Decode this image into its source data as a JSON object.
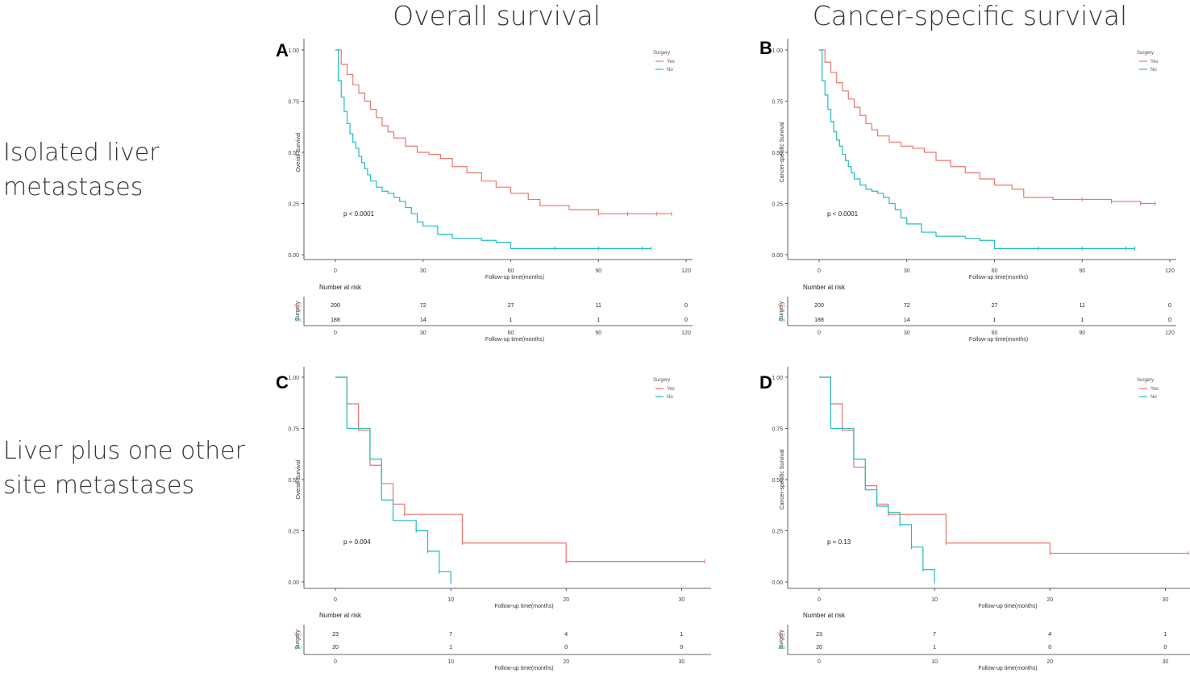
{
  "column_titles": [
    "Overall survival",
    "Cancer-specific survival"
  ],
  "row_labels": [
    [
      "Isolated liver",
      "metastases"
    ],
    [
      "Liver plus one other",
      "site metastases"
    ]
  ],
  "colors": {
    "yes": "#E8776C",
    "no": "#1FBDC4",
    "no_dark": "#168F8F",
    "axis": "#333333"
  },
  "chart_data": [
    {
      "panel": "A",
      "type": "line",
      "ylabel": "Overall Survival",
      "xlabel": "Follow-up time(months)",
      "xlim": [
        0,
        120
      ],
      "ylim": [
        0,
        1
      ],
      "xticks": [
        "0",
        "30",
        "60",
        "90",
        "120"
      ],
      "yticks": [
        "0.00",
        "0.25",
        "0.50",
        "0.75",
        "1.00"
      ],
      "pvalue": "p < 0.0001",
      "legend": {
        "title": "Surgery",
        "entries": [
          "Yes",
          "No"
        ],
        "position": "top-right"
      },
      "series": [
        {
          "name": "Yes",
          "x": [
            0,
            2,
            4,
            6,
            8,
            10,
            12,
            14,
            16,
            18,
            20,
            24,
            28,
            32,
            36,
            40,
            45,
            50,
            55,
            60,
            66,
            70,
            80,
            90,
            100,
            110,
            115
          ],
          "y": [
            1.0,
            0.93,
            0.88,
            0.83,
            0.79,
            0.75,
            0.71,
            0.67,
            0.63,
            0.6,
            0.57,
            0.53,
            0.5,
            0.49,
            0.47,
            0.43,
            0.4,
            0.36,
            0.33,
            0.3,
            0.27,
            0.24,
            0.22,
            0.2,
            0.2,
            0.2,
            0.2
          ]
        },
        {
          "name": "No",
          "x": [
            0,
            1,
            2,
            3,
            4,
            5,
            6,
            7,
            8,
            9,
            10,
            11,
            12,
            14,
            16,
            18,
            20,
            22,
            24,
            26,
            28,
            30,
            35,
            40,
            50,
            55,
            60,
            75,
            90,
            105,
            108
          ],
          "y": [
            1.0,
            0.85,
            0.77,
            0.7,
            0.64,
            0.59,
            0.55,
            0.52,
            0.48,
            0.45,
            0.42,
            0.39,
            0.36,
            0.33,
            0.31,
            0.3,
            0.28,
            0.26,
            0.23,
            0.2,
            0.16,
            0.14,
            0.1,
            0.08,
            0.07,
            0.06,
            0.03,
            0.03,
            0.03,
            0.03,
            0.03
          ]
        }
      ],
      "risk_table": {
        "title": "Number at risk",
        "strata_label": "Surgery",
        "xlabel": "Follow-up time(months)",
        "xticks": [
          "0",
          "30",
          "60",
          "90",
          "120"
        ],
        "rows": [
          {
            "name": "Yes",
            "values": [
              "200",
              "72",
              "27",
              "11",
              "0"
            ]
          },
          {
            "name": "No",
            "values": [
              "188",
              "14",
              "1",
              "1",
              "0"
            ]
          }
        ]
      }
    },
    {
      "panel": "B",
      "type": "line",
      "ylabel": "Cancer-specific Survival",
      "xlabel": "Follow-up time(months)",
      "xlim": [
        0,
        120
      ],
      "ylim": [
        0,
        1
      ],
      "xticks": [
        "0",
        "30",
        "60",
        "90",
        "120"
      ],
      "yticks": [
        "0.00",
        "0.25",
        "0.50",
        "0.75",
        "1.00"
      ],
      "pvalue": "p < 0.0001",
      "legend": {
        "title": "Surgery",
        "entries": [
          "Yes",
          "No"
        ],
        "position": "top-right"
      },
      "series": [
        {
          "name": "Yes",
          "x": [
            0,
            2,
            4,
            6,
            8,
            10,
            12,
            14,
            16,
            18,
            20,
            24,
            28,
            32,
            36,
            40,
            45,
            50,
            55,
            60,
            66,
            70,
            80,
            90,
            100,
            110,
            115
          ],
          "y": [
            1.0,
            0.94,
            0.89,
            0.84,
            0.8,
            0.76,
            0.72,
            0.68,
            0.64,
            0.61,
            0.58,
            0.55,
            0.53,
            0.52,
            0.5,
            0.46,
            0.43,
            0.4,
            0.37,
            0.34,
            0.32,
            0.28,
            0.27,
            0.27,
            0.26,
            0.25,
            0.25
          ]
        },
        {
          "name": "No",
          "x": [
            0,
            1,
            2,
            3,
            4,
            5,
            6,
            7,
            8,
            9,
            10,
            11,
            12,
            14,
            16,
            18,
            20,
            22,
            24,
            26,
            28,
            30,
            35,
            40,
            50,
            55,
            60,
            75,
            90,
            105,
            108
          ],
          "y": [
            1.0,
            0.85,
            0.78,
            0.71,
            0.65,
            0.6,
            0.56,
            0.53,
            0.49,
            0.46,
            0.43,
            0.4,
            0.37,
            0.34,
            0.32,
            0.31,
            0.3,
            0.28,
            0.25,
            0.22,
            0.18,
            0.15,
            0.11,
            0.09,
            0.08,
            0.07,
            0.03,
            0.03,
            0.03,
            0.03,
            0.03
          ]
        }
      ],
      "risk_table": {
        "title": "Number at risk",
        "strata_label": "Surgery",
        "xlabel": "Follow-up time(months)",
        "xticks": [
          "0",
          "30",
          "60",
          "90",
          "120"
        ],
        "rows": [
          {
            "name": "Yes",
            "values": [
              "200",
              "72",
              "27",
              "11",
              "0"
            ]
          },
          {
            "name": "No",
            "values": [
              "188",
              "14",
              "1",
              "1",
              "0"
            ]
          }
        ]
      }
    },
    {
      "panel": "C",
      "type": "line",
      "ylabel": "Overall Survival",
      "xlabel": "Follow-up time(months)",
      "xlim": [
        0,
        32
      ],
      "ylim": [
        0,
        1
      ],
      "xticks": [
        "0",
        "10",
        "20",
        "30"
      ],
      "yticks": [
        "0.00",
        "0.25",
        "0.50",
        "0.75",
        "1.00"
      ],
      "pvalue": "p = 0.094",
      "legend": {
        "title": "Surgery",
        "entries": [
          "Yes",
          "No"
        ],
        "position": "top-right"
      },
      "series": [
        {
          "name": "Yes",
          "x": [
            0,
            1,
            2,
            3,
            4,
            5,
            6,
            11,
            20,
            32
          ],
          "y": [
            1.0,
            0.87,
            0.74,
            0.57,
            0.48,
            0.38,
            0.33,
            0.19,
            0.1,
            0.1
          ]
        },
        {
          "name": "No",
          "x": [
            0,
            1,
            2,
            3,
            4,
            5,
            7,
            8,
            9,
            10
          ],
          "y": [
            1.0,
            0.75,
            0.75,
            0.6,
            0.4,
            0.3,
            0.25,
            0.15,
            0.05,
            0.0
          ]
        }
      ],
      "risk_table": {
        "title": "Number at risk",
        "strata_label": "Surgery",
        "xlabel": "Follow-up time(months)",
        "xticks": [
          "0",
          "10",
          "20",
          "30"
        ],
        "rows": [
          {
            "name": "Yes",
            "values": [
              "23",
              "7",
              "4",
              "1"
            ]
          },
          {
            "name": "No",
            "values": [
              "20",
              "1",
              "0",
              "0"
            ]
          }
        ]
      }
    },
    {
      "panel": "D",
      "type": "line",
      "ylabel": "Cancer-specific Survival",
      "xlabel": "Follow-up time(months)",
      "xlim": [
        0,
        32
      ],
      "ylim": [
        0,
        1
      ],
      "xticks": [
        "0",
        "10",
        "20",
        "30"
      ],
      "yticks": [
        "0.00",
        "0.25",
        "0.50",
        "0.75",
        "1.00"
      ],
      "pvalue": "p = 0.13",
      "legend": {
        "title": "Surgery",
        "entries": [
          "Yes",
          "No"
        ],
        "position": "top-right"
      },
      "series": [
        {
          "name": "Yes",
          "x": [
            0,
            1,
            2,
            3,
            4,
            5,
            6,
            11,
            20,
            32
          ],
          "y": [
            1.0,
            0.87,
            0.74,
            0.56,
            0.47,
            0.38,
            0.33,
            0.19,
            0.14,
            0.14
          ]
        },
        {
          "name": "No",
          "x": [
            0,
            1,
            2,
            3,
            4,
            5,
            6,
            7,
            8,
            9,
            10
          ],
          "y": [
            1.0,
            0.75,
            0.75,
            0.6,
            0.45,
            0.37,
            0.34,
            0.28,
            0.17,
            0.06,
            0.0
          ]
        }
      ],
      "risk_table": {
        "title": "Number at risk",
        "strata_label": "Surgery",
        "xlabel": "Follow-up time(months)",
        "xticks": [
          "0",
          "10",
          "20",
          "30"
        ],
        "rows": [
          {
            "name": "Yes",
            "values": [
              "23",
              "7",
              "4",
              "1"
            ]
          },
          {
            "name": "No",
            "values": [
              "20",
              "1",
              "0",
              "0"
            ]
          }
        ]
      }
    }
  ]
}
